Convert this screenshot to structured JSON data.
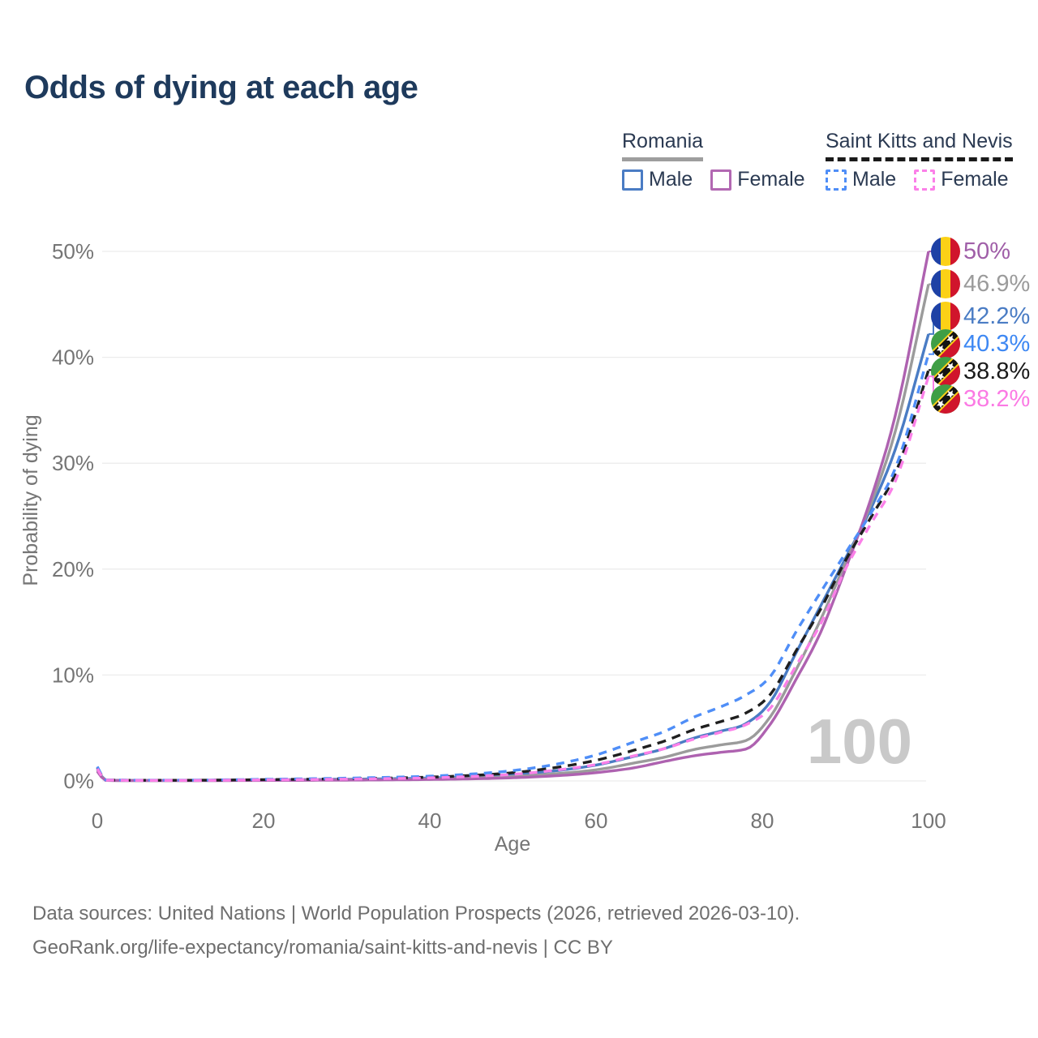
{
  "title": "Odds of dying at each age",
  "legend": {
    "groups": [
      {
        "key": "romania",
        "label": "Romania",
        "line_style": "solid",
        "line_color": "#9e9e9e",
        "items": [
          {
            "key": "male",
            "label": "Male",
            "color": "#4a7cc4",
            "dashed": false
          },
          {
            "key": "female",
            "label": "Female",
            "color": "#b268b2",
            "dashed": false
          }
        ]
      },
      {
        "key": "saint-kitts-and-nevis",
        "label": "Saint Kitts and Nevis",
        "line_style": "dashed",
        "line_color": "#1a1a1a",
        "items": [
          {
            "key": "male",
            "label": "Male",
            "color": "#4f8ef7",
            "dashed": true
          },
          {
            "key": "female",
            "label": "Female",
            "color": "#fb80e8",
            "dashed": true
          }
        ]
      }
    ]
  },
  "chart_data": {
    "type": "line",
    "title": "Odds of dying at each age",
    "xlabel": "Age",
    "ylabel": "Probability of dying",
    "xlim": [
      0,
      100
    ],
    "ylim": [
      0,
      50
    ],
    "grid": "horizontal",
    "watermark": "100",
    "x_ticks": [
      {
        "value": 0,
        "label": "0"
      },
      {
        "value": 20,
        "label": "20"
      },
      {
        "value": 40,
        "label": "40"
      },
      {
        "value": 60,
        "label": "60"
      },
      {
        "value": 80,
        "label": "80"
      },
      {
        "value": 100,
        "label": "100"
      }
    ],
    "y_ticks": [
      {
        "value": 0,
        "label": "0%"
      },
      {
        "value": 10,
        "label": "10%"
      },
      {
        "value": 20,
        "label": "20%"
      },
      {
        "value": 30,
        "label": "30%"
      },
      {
        "value": 40,
        "label": "40%"
      },
      {
        "value": 50,
        "label": "50%"
      }
    ],
    "series": [
      {
        "name": "Romania Female",
        "country": "Romania",
        "sex": "Female",
        "flag": "romania",
        "color": "#ae62b0",
        "dash": null,
        "end_value": 50.0,
        "end_label": "50%",
        "label_color": "#a05fa8",
        "points": [
          [
            0,
            0.9
          ],
          [
            1,
            0.05
          ],
          [
            5,
            0.03
          ],
          [
            10,
            0.03
          ],
          [
            15,
            0.04
          ],
          [
            20,
            0.05
          ],
          [
            25,
            0.06
          ],
          [
            30,
            0.08
          ],
          [
            35,
            0.1
          ],
          [
            40,
            0.14
          ],
          [
            45,
            0.2
          ],
          [
            50,
            0.3
          ],
          [
            55,
            0.48
          ],
          [
            60,
            0.78
          ],
          [
            65,
            1.3
          ],
          [
            68,
            1.8
          ],
          [
            72,
            2.4
          ],
          [
            75,
            2.7
          ],
          [
            78,
            3.0
          ],
          [
            81,
            5.4
          ],
          [
            84,
            9.5
          ],
          [
            87,
            14.0
          ],
          [
            90,
            20.0
          ],
          [
            93,
            26.5
          ],
          [
            96,
            34.5
          ],
          [
            100,
            50.0
          ]
        ]
      },
      {
        "name": "Romania Both sexes",
        "country": "Romania",
        "sex": "All",
        "flag": "romania",
        "color": "#9b9b9b",
        "dash": null,
        "end_value": 46.9,
        "end_label": "46.9%",
        "label_color": "#9b9b9b",
        "points": [
          [
            0,
            1.0
          ],
          [
            1,
            0.06
          ],
          [
            5,
            0.04
          ],
          [
            10,
            0.04
          ],
          [
            15,
            0.05
          ],
          [
            20,
            0.07
          ],
          [
            25,
            0.09
          ],
          [
            30,
            0.11
          ],
          [
            35,
            0.14
          ],
          [
            40,
            0.19
          ],
          [
            45,
            0.28
          ],
          [
            50,
            0.42
          ],
          [
            55,
            0.67
          ],
          [
            60,
            1.05
          ],
          [
            65,
            1.75
          ],
          [
            68,
            2.2
          ],
          [
            72,
            3.0
          ],
          [
            75,
            3.4
          ],
          [
            78,
            3.8
          ],
          [
            81,
            6.1
          ],
          [
            84,
            10.4
          ],
          [
            87,
            15.2
          ],
          [
            90,
            20.6
          ],
          [
            93,
            26.0
          ],
          [
            96,
            33.0
          ],
          [
            100,
            46.9
          ]
        ]
      },
      {
        "name": "Romania Male",
        "country": "Romania",
        "sex": "Male",
        "flag": "romania",
        "color": "#4a7cc4",
        "dash": null,
        "end_value": 42.2,
        "end_label": "42.2%",
        "label_color": "#4a7cc4",
        "points": [
          [
            0,
            1.1
          ],
          [
            1,
            0.07
          ],
          [
            5,
            0.05
          ],
          [
            10,
            0.05
          ],
          [
            15,
            0.07
          ],
          [
            20,
            0.1
          ],
          [
            25,
            0.13
          ],
          [
            30,
            0.16
          ],
          [
            35,
            0.21
          ],
          [
            40,
            0.28
          ],
          [
            45,
            0.42
          ],
          [
            50,
            0.62
          ],
          [
            55,
            0.95
          ],
          [
            60,
            1.5
          ],
          [
            65,
            2.4
          ],
          [
            68,
            3.0
          ],
          [
            72,
            4.1
          ],
          [
            75,
            4.7
          ],
          [
            78,
            5.4
          ],
          [
            81,
            7.5
          ],
          [
            84,
            12.0
          ],
          [
            87,
            16.5
          ],
          [
            90,
            21.0
          ],
          [
            93,
            25.6
          ],
          [
            96,
            31.3
          ],
          [
            100,
            42.2
          ]
        ]
      },
      {
        "name": "Saint Kitts and Nevis Male",
        "country": "Saint Kitts and Nevis",
        "sex": "Male",
        "flag": "saint-kitts-and-nevis",
        "color": "#4f8ef7",
        "dash": "10 8",
        "end_value": 40.3,
        "end_label": "40.3%",
        "label_color": "#3e88f3",
        "points": [
          [
            0,
            1.35
          ],
          [
            1,
            0.1
          ],
          [
            5,
            0.07
          ],
          [
            10,
            0.07
          ],
          [
            15,
            0.1
          ],
          [
            20,
            0.15
          ],
          [
            25,
            0.2
          ],
          [
            30,
            0.26
          ],
          [
            35,
            0.34
          ],
          [
            40,
            0.45
          ],
          [
            45,
            0.65
          ],
          [
            50,
            0.98
          ],
          [
            55,
            1.55
          ],
          [
            60,
            2.45
          ],
          [
            65,
            3.8
          ],
          [
            68,
            4.6
          ],
          [
            72,
            6.1
          ],
          [
            75,
            7.0
          ],
          [
            78,
            8.1
          ],
          [
            81,
            9.9
          ],
          [
            84,
            14.0
          ],
          [
            87,
            17.8
          ],
          [
            90,
            21.5
          ],
          [
            93,
            25.2
          ],
          [
            96,
            29.5
          ],
          [
            100,
            40.3
          ]
        ]
      },
      {
        "name": "Saint Kitts and Nevis Both sexes",
        "country": "Saint Kitts and Nevis",
        "sex": "All",
        "flag": "saint-kitts-and-nevis",
        "color": "#1f1f1f",
        "dash": "11 8",
        "end_value": 38.8,
        "end_label": "38.8%",
        "label_color": "#1a1a1a",
        "points": [
          [
            0,
            1.25
          ],
          [
            1,
            0.09
          ],
          [
            5,
            0.06
          ],
          [
            10,
            0.06
          ],
          [
            15,
            0.08
          ],
          [
            20,
            0.12
          ],
          [
            25,
            0.16
          ],
          [
            30,
            0.21
          ],
          [
            35,
            0.27
          ],
          [
            40,
            0.36
          ],
          [
            45,
            0.52
          ],
          [
            50,
            0.78
          ],
          [
            55,
            1.25
          ],
          [
            60,
            1.95
          ],
          [
            65,
            3.0
          ],
          [
            68,
            3.7
          ],
          [
            72,
            4.9
          ],
          [
            75,
            5.6
          ],
          [
            78,
            6.4
          ],
          [
            81,
            8.2
          ],
          [
            84,
            12.2
          ],
          [
            87,
            16.2
          ],
          [
            90,
            20.8
          ],
          [
            93,
            24.8
          ],
          [
            96,
            29.0
          ],
          [
            100,
            38.8
          ]
        ]
      },
      {
        "name": "Saint Kitts and Nevis Female",
        "country": "Saint Kitts and Nevis",
        "sex": "Female",
        "flag": "saint-kitts-and-nevis",
        "color": "#fb80e8",
        "dash": "10 8",
        "end_value": 38.2,
        "end_label": "38.2%",
        "label_color": "#fb7ae4",
        "points": [
          [
            0,
            1.15
          ],
          [
            1,
            0.08
          ],
          [
            5,
            0.05
          ],
          [
            10,
            0.05
          ],
          [
            15,
            0.07
          ],
          [
            20,
            0.1
          ],
          [
            25,
            0.13
          ],
          [
            30,
            0.17
          ],
          [
            35,
            0.22
          ],
          [
            40,
            0.29
          ],
          [
            45,
            0.42
          ],
          [
            50,
            0.62
          ],
          [
            55,
            1.0
          ],
          [
            60,
            1.55
          ],
          [
            65,
            2.45
          ],
          [
            68,
            3.0
          ],
          [
            72,
            4.0
          ],
          [
            75,
            4.6
          ],
          [
            78,
            5.3
          ],
          [
            81,
            6.9
          ],
          [
            84,
            10.8
          ],
          [
            87,
            14.8
          ],
          [
            90,
            20.0
          ],
          [
            93,
            24.2
          ],
          [
            96,
            28.3
          ],
          [
            100,
            38.2
          ]
        ]
      }
    ]
  },
  "footer": {
    "line1": "Data sources: United Nations | World Population Prospects (2026, retrieved 2026-03-10).",
    "line2": "GeoRank.org/life-expectancy/romania/saint-kitts-and-nevis | CC BY"
  }
}
